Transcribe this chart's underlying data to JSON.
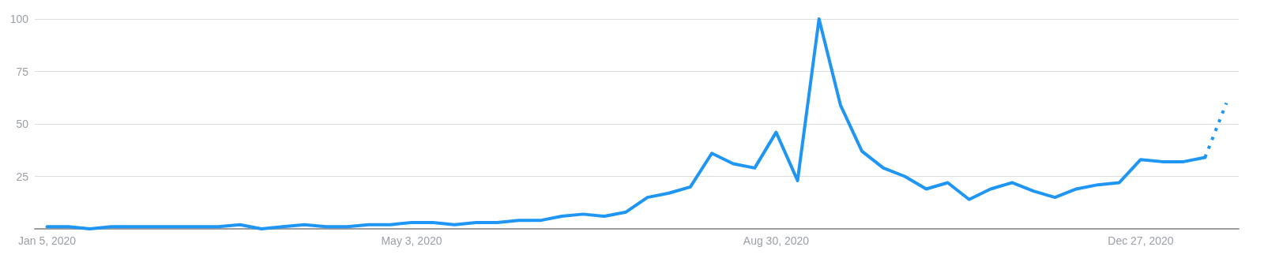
{
  "chart_data": {
    "type": "line",
    "grid": "y",
    "marker": "none",
    "x": [
      "2020-01-05",
      "2020-01-12",
      "2020-01-19",
      "2020-01-26",
      "2020-02-02",
      "2020-02-09",
      "2020-02-16",
      "2020-02-23",
      "2020-03-01",
      "2020-03-08",
      "2020-03-15",
      "2020-03-22",
      "2020-03-29",
      "2020-04-05",
      "2020-04-12",
      "2020-04-19",
      "2020-04-26",
      "2020-05-03",
      "2020-05-10",
      "2020-05-17",
      "2020-05-24",
      "2020-05-31",
      "2020-06-07",
      "2020-06-14",
      "2020-06-21",
      "2020-06-28",
      "2020-07-05",
      "2020-07-12",
      "2020-07-19",
      "2020-07-26",
      "2020-08-02",
      "2020-08-09",
      "2020-08-16",
      "2020-08-23",
      "2020-08-30",
      "2020-09-06",
      "2020-09-13",
      "2020-09-20",
      "2020-09-27",
      "2020-10-04",
      "2020-10-11",
      "2020-10-18",
      "2020-10-25",
      "2020-11-01",
      "2020-11-08",
      "2020-11-15",
      "2020-11-22",
      "2020-11-29",
      "2020-12-06",
      "2020-12-13",
      "2020-12-20",
      "2020-12-27",
      "2021-01-03",
      "2021-01-10",
      "2021-01-17"
    ],
    "series": [
      {
        "color": "#1f96f3",
        "line_style": "solid",
        "values": [
          1,
          1,
          0,
          1,
          1,
          1,
          1,
          1,
          1,
          2,
          0,
          1,
          2,
          1,
          1,
          2,
          2,
          3,
          3,
          2,
          3,
          3,
          4,
          4,
          6,
          7,
          6,
          8,
          15,
          17,
          20,
          36,
          31,
          29,
          46,
          23,
          100,
          59,
          37,
          29,
          25,
          19,
          22,
          14,
          19,
          22,
          18,
          15,
          19,
          21,
          22,
          33,
          32,
          32,
          34
        ]
      },
      {
        "color": "#1f96f3",
        "line_style": "dotted",
        "x": [
          "2021-01-17",
          "2021-01-24"
        ],
        "values": [
          34,
          60
        ]
      }
    ],
    "xlim": [
      "2020-01-01",
      "2021-01-28"
    ],
    "xticks": [
      {
        "value": "2020-01-05",
        "label": "Jan 5, 2020"
      },
      {
        "value": "2020-05-03",
        "label": "May 3, 2020"
      },
      {
        "value": "2020-08-30",
        "label": "Aug 30, 2020"
      },
      {
        "value": "2020-12-27",
        "label": "Dec 27, 2020"
      }
    ],
    "ylim": [
      0,
      100
    ],
    "yticks": [
      {
        "value": 0,
        "label": null
      },
      25,
      50,
      75,
      100
    ]
  }
}
